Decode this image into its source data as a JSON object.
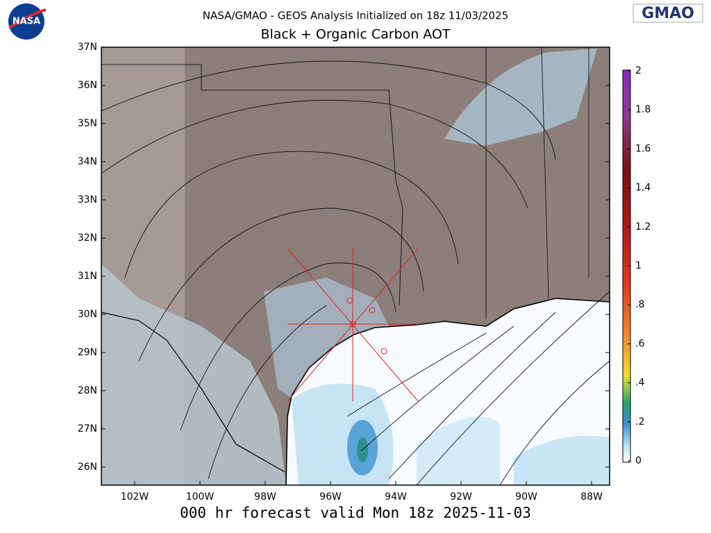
{
  "header": {
    "title": "NASA/GMAO - GEOS Analysis Initialized on 18z 11/03/2025",
    "subtitle": "Black + Organic Carbon AOT",
    "logo_left": "NASA",
    "logo_right": "GMAO"
  },
  "map": {
    "lat_labels": [
      "37N",
      "36N",
      "35N",
      "34N",
      "33N",
      "32N",
      "31N",
      "30N",
      "29N",
      "28N",
      "27N",
      "26N"
    ],
    "lon_labels": [
      "102W",
      "100W",
      "98W",
      "96W",
      "94W",
      "92W",
      "90W",
      "88W"
    ]
  },
  "colorbar": {
    "labels": [
      "2",
      "1.8",
      "1.6",
      "1.4",
      "1.2",
      "1",
      ".8",
      ".6",
      ".4",
      ".2",
      "0"
    ]
  },
  "footer": {
    "text": "000 hr forecast valid Mon 18z 2025-11-03"
  }
}
